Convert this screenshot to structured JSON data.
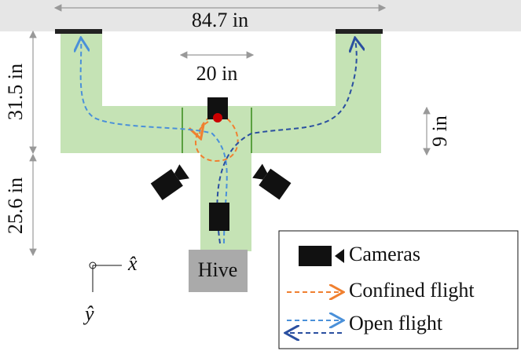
{
  "dimensions": {
    "width": "84.7 in",
    "arm_length": "31.5 in",
    "center_width": "20 in",
    "corridor_width": "9 in",
    "stem_length": "25.6 in"
  },
  "hive": "Hive",
  "axes": {
    "x": "x̂",
    "y": "ŷ"
  },
  "legend": {
    "cameras": "Cameras",
    "confined": "Confined flight",
    "open": "Open flight"
  }
}
